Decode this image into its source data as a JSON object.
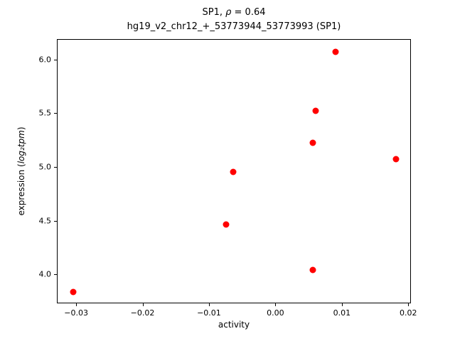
{
  "chart_data": {
    "type": "scatter",
    "title_prefix": "SP1, ",
    "title_math": "ρ",
    "title_suffix": " = 0.64",
    "subtitle": "hg19_v2_chr12_+_53773944_53773993 (SP1)",
    "xlabel": "activity",
    "ylabel_prefix": "expression (",
    "ylabel_math": "log₂tpm",
    "ylabel_suffix": ")",
    "marker_color": "#ff0000",
    "legend": "none",
    "grid": false,
    "xlim": [
      -0.0329,
      0.0204
    ],
    "ylim": [
      3.73,
      6.19
    ],
    "xticks": {
      "values": [
        -0.03,
        -0.02,
        -0.01,
        0.0,
        0.01,
        0.02
      ],
      "labels": [
        "−0.03",
        "−0.02",
        "−0.01",
        "0.00",
        "0.01",
        "0.02"
      ]
    },
    "yticks": {
      "values": [
        4.0,
        4.5,
        5.0,
        5.5,
        6.0
      ],
      "labels": [
        "4.0",
        "4.5",
        "5.0",
        "5.5",
        "6.0"
      ]
    },
    "points": [
      {
        "x": -0.0305,
        "y": 3.84
      },
      {
        "x": -0.0075,
        "y": 4.47
      },
      {
        "x": -0.0065,
        "y": 4.96
      },
      {
        "x": 0.0055,
        "y": 4.05
      },
      {
        "x": 0.0055,
        "y": 5.23
      },
      {
        "x": 0.006,
        "y": 5.53
      },
      {
        "x": 0.009,
        "y": 6.08
      },
      {
        "x": 0.018,
        "y": 5.08
      }
    ]
  }
}
